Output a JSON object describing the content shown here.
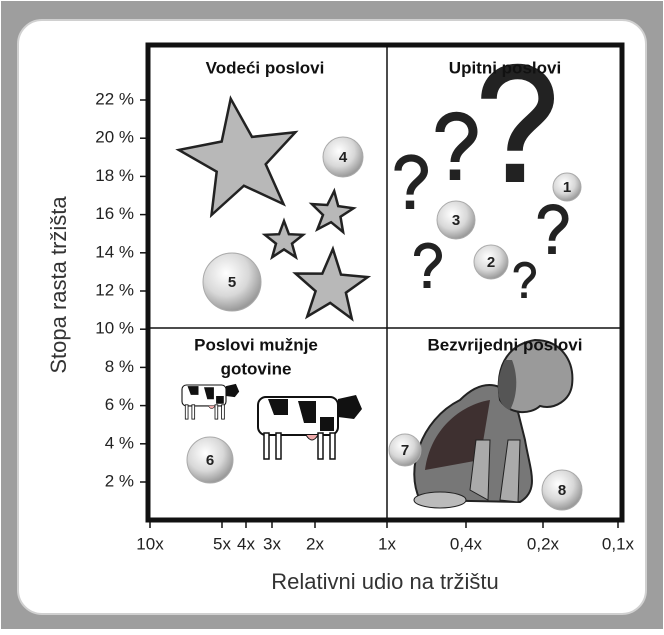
{
  "y_axis": {
    "label": "Stopa rasta tržišta",
    "ticks": [
      "2 %",
      "4 %",
      "6 %",
      "8 %",
      "10 %",
      "12 %",
      "14 %",
      "16 %",
      "18 %",
      "20 %",
      "22 %"
    ]
  },
  "x_axis": {
    "label": "Relativni udio na tržištu",
    "ticks": [
      "10x",
      "5x",
      "4x",
      "3x",
      "2x",
      "1x",
      "0,4x",
      "0,2x",
      "0,1x"
    ]
  },
  "quadrants": {
    "top_left": "Vodeći poslovi",
    "top_right": "Upitni poslovi",
    "bottom_left": [
      "Poslovi mužnje",
      "gotovine"
    ],
    "bottom_right": "Bezvrijedni poslovi"
  },
  "businesses": [
    "1",
    "2",
    "3",
    "4",
    "5",
    "6",
    "7",
    "8"
  ]
}
